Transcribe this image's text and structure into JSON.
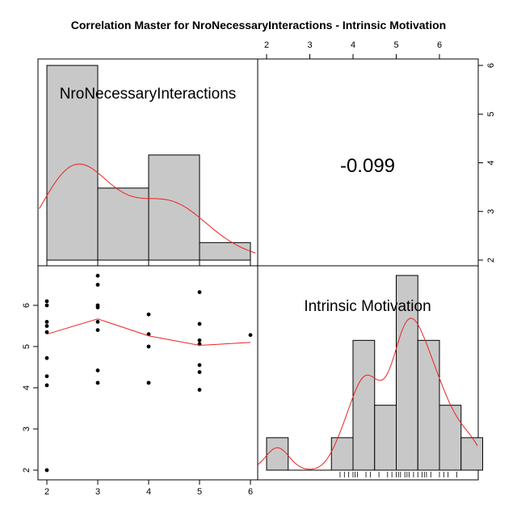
{
  "title": "Correlation Master for NroNecessaryInteractions - Intrinsic Motivation",
  "colors": {
    "bar_fill": "#c8c8c8",
    "density_line": "#ee2222",
    "smooth_line": "#ee2222",
    "point": "#000000",
    "frame": "#000000"
  },
  "chart_data": [
    {
      "type": "bar",
      "panel": "top-left",
      "label": "NroNecessaryInteractions",
      "bins": [
        [
          2,
          3
        ],
        [
          3,
          4
        ],
        [
          4,
          5
        ],
        [
          5,
          6
        ]
      ],
      "counts": [
        10,
        3.7,
        5.4,
        0.9
      ],
      "density_curve": true,
      "x_ticks": [
        2,
        3,
        4,
        5,
        6
      ]
    },
    {
      "type": "table",
      "panel": "top-right",
      "correlation": "-0.099"
    },
    {
      "type": "scatter",
      "panel": "bottom-left",
      "xlim": [
        2,
        6
      ],
      "ylim": [
        2,
        6.7
      ],
      "x_ticks": [
        "2",
        "3",
        "4",
        "5",
        "6"
      ],
      "y_ticks": [
        "2",
        "3",
        "4",
        "5",
        "6"
      ],
      "points": [
        [
          2,
          6.1
        ],
        [
          2,
          6.0
        ],
        [
          2,
          5.6
        ],
        [
          2,
          5.5
        ],
        [
          2,
          5.35
        ],
        [
          2,
          4.72
        ],
        [
          2,
          4.28
        ],
        [
          2,
          4.06
        ],
        [
          2,
          2.0
        ],
        [
          3,
          6.72
        ],
        [
          3,
          6.5
        ],
        [
          3,
          6.0
        ],
        [
          3,
          5.95
        ],
        [
          3,
          5.6
        ],
        [
          3,
          5.4
        ],
        [
          3,
          4.42
        ],
        [
          3,
          4.12
        ],
        [
          4,
          5.78
        ],
        [
          4,
          5.3
        ],
        [
          4,
          5.0
        ],
        [
          4,
          4.12
        ],
        [
          5,
          6.32
        ],
        [
          5,
          5.55
        ],
        [
          5,
          5.15
        ],
        [
          5,
          5.06
        ],
        [
          5,
          4.55
        ],
        [
          5,
          4.38
        ],
        [
          5,
          3.95
        ],
        [
          6,
          5.28
        ]
      ],
      "smooth_line": [
        [
          2,
          5.3
        ],
        [
          3,
          5.67
        ],
        [
          4,
          5.26
        ],
        [
          5,
          5.03
        ],
        [
          6,
          5.1
        ]
      ]
    },
    {
      "type": "bar",
      "panel": "bottom-right",
      "label": "Intrinsic Motivation",
      "bins": [
        [
          2,
          2.5
        ],
        [
          2.5,
          3
        ],
        [
          3,
          3.5
        ],
        [
          3.5,
          4
        ],
        [
          4,
          4.5
        ],
        [
          4.5,
          5
        ],
        [
          5,
          5.5
        ],
        [
          5.5,
          6
        ],
        [
          6,
          6.5
        ],
        [
          6.5,
          7
        ]
      ],
      "counts": [
        1,
        0,
        0,
        1,
        4,
        2,
        6,
        4,
        2,
        1
      ],
      "density_curve": true,
      "rug": [
        3.7,
        3.8,
        3.9,
        4.0,
        4.05,
        4.1,
        4.3,
        4.4,
        4.6,
        4.8,
        4.9,
        5.0,
        5.05,
        5.1,
        5.2,
        5.25,
        5.3,
        5.4,
        5.5,
        5.6,
        5.65,
        5.7,
        5.8,
        6.0,
        6.1,
        6.2,
        6.4
      ]
    }
  ],
  "axes": {
    "top_x_ticks": [
      "2",
      "3",
      "4",
      "5",
      "6"
    ],
    "right_y_ticks": [
      "2",
      "3",
      "4",
      "5",
      "6"
    ]
  }
}
